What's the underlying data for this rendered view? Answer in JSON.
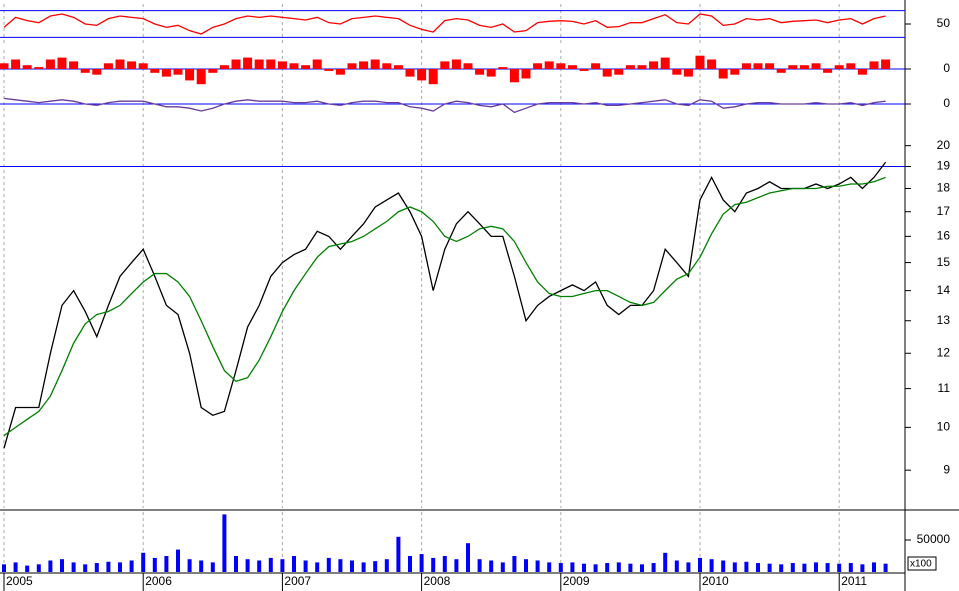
{
  "chart_data": [
    {
      "type": "line",
      "ylim": [
        20,
        80
      ],
      "yticks": [
        50
      ],
      "grid": true,
      "reference_lines": [
        30,
        70
      ],
      "reference_color": "#0000ff",
      "series": [
        {
          "color": "#ff0000",
          "values": [
            45,
            60,
            55,
            52,
            62,
            65,
            60,
            50,
            48,
            58,
            62,
            60,
            58,
            50,
            45,
            48,
            40,
            35,
            45,
            50,
            58,
            62,
            60,
            62,
            60,
            58,
            56,
            60,
            52,
            50,
            58,
            60,
            62,
            60,
            58,
            48,
            42,
            38,
            55,
            58,
            56,
            48,
            45,
            50,
            38,
            40,
            52,
            54,
            55,
            54,
            50,
            55,
            45,
            46,
            52,
            52,
            58,
            64,
            52,
            50,
            65,
            62,
            48,
            50,
            58,
            56,
            58,
            52,
            54,
            55,
            56,
            52,
            56,
            58,
            50,
            58,
            62
          ]
        }
      ]
    },
    {
      "type": "bar",
      "ylim": [
        -1,
        1
      ],
      "yticks": [
        0
      ],
      "grid": true,
      "reference_lines": [
        0
      ],
      "reference_color": "#0000ff",
      "series": [
        {
          "color": "#ff0000",
          "values": [
            0.3,
            0.5,
            0.2,
            0.1,
            0.5,
            0.6,
            0.4,
            -0.2,
            -0.3,
            0.3,
            0.5,
            0.4,
            0.3,
            -0.2,
            -0.4,
            -0.3,
            -0.6,
            -0.8,
            -0.2,
            0.2,
            0.5,
            0.6,
            0.5,
            0.5,
            0.4,
            0.3,
            0.2,
            0.5,
            -0.1,
            -0.3,
            0.3,
            0.4,
            0.5,
            0.3,
            0.2,
            -0.4,
            -0.6,
            -0.8,
            0.4,
            0.5,
            0.3,
            -0.3,
            -0.4,
            0.1,
            -0.7,
            -0.5,
            0.3,
            0.4,
            0.3,
            0.2,
            -0.1,
            0.3,
            -0.4,
            -0.3,
            0.2,
            0.2,
            0.4,
            0.6,
            -0.3,
            -0.4,
            0.7,
            0.5,
            -0.5,
            -0.3,
            0.3,
            0.3,
            0.3,
            -0.2,
            0.2,
            0.2,
            0.3,
            -0.2,
            0.2,
            0.3,
            -0.3,
            0.4,
            0.5
          ]
        }
      ]
    },
    {
      "type": "line",
      "ylim": [
        -1,
        1
      ],
      "yticks": [
        0
      ],
      "grid": true,
      "reference_lines": [
        0
      ],
      "reference_color": "#0000ff",
      "series": [
        {
          "color": "#6a3d9a",
          "values": [
            0.4,
            0.3,
            0.2,
            0.1,
            0.2,
            0.3,
            0.2,
            0.0,
            -0.1,
            0.1,
            0.2,
            0.2,
            0.2,
            0.0,
            -0.2,
            -0.2,
            -0.3,
            -0.5,
            -0.3,
            0.0,
            0.2,
            0.3,
            0.2,
            0.2,
            0.2,
            0.1,
            0.1,
            0.2,
            0.0,
            -0.1,
            0.1,
            0.2,
            0.2,
            0.1,
            0.1,
            -0.2,
            -0.3,
            -0.5,
            0.0,
            0.2,
            0.1,
            -0.1,
            -0.2,
            0.0,
            -0.6,
            -0.3,
            0.0,
            0.1,
            0.1,
            0.1,
            0.0,
            0.1,
            -0.1,
            -0.1,
            0.0,
            0.1,
            0.2,
            0.3,
            0.0,
            -0.1,
            0.3,
            0.2,
            -0.3,
            -0.2,
            0.0,
            0.1,
            0.1,
            0.0,
            0.0,
            0.0,
            0.1,
            0.0,
            0.0,
            0.1,
            -0.1,
            0.1,
            0.2
          ]
        }
      ]
    },
    {
      "type": "line",
      "log": true,
      "ylim": [
        8.2,
        21.2
      ],
      "yticks": [
        9,
        10,
        11,
        12,
        13,
        14,
        15,
        16,
        17,
        18,
        19,
        20
      ],
      "grid": true,
      "reference_lines": [
        19
      ],
      "reference_color": "#0000ff",
      "series": [
        {
          "color": "#000000",
          "values": [
            9.5,
            10.5,
            10.5,
            10.5,
            12,
            13.5,
            14,
            13.3,
            12.5,
            13.5,
            14.5,
            15,
            15.5,
            14.5,
            13.5,
            13.2,
            12,
            10.5,
            10.3,
            10.4,
            11.5,
            12.8,
            13.5,
            14.5,
            15,
            15.3,
            15.5,
            16.2,
            16,
            15.5,
            16,
            16.5,
            17.2,
            17.5,
            17.8,
            17,
            16,
            14,
            15.5,
            16.5,
            17,
            16.5,
            16,
            16,
            14.5,
            13,
            13.5,
            13.8,
            14,
            14.2,
            14,
            14.3,
            13.5,
            13.2,
            13.5,
            13.5,
            14,
            15.5,
            15,
            14.5,
            17.5,
            18.5,
            17.5,
            17,
            17.8,
            18,
            18.3,
            18,
            18,
            18,
            18.2,
            18,
            18.2,
            18.5,
            18,
            18.5,
            19.2
          ]
        },
        {
          "color": "#008000",
          "values": [
            9.8,
            10,
            10.2,
            10.4,
            10.8,
            11.5,
            12.3,
            12.9,
            13.2,
            13.3,
            13.5,
            13.9,
            14.3,
            14.6,
            14.6,
            14.3,
            13.8,
            13,
            12.2,
            11.5,
            11.2,
            11.3,
            11.8,
            12.5,
            13.3,
            14,
            14.6,
            15.2,
            15.6,
            15.7,
            15.8,
            16,
            16.3,
            16.6,
            17,
            17.2,
            17,
            16.6,
            16,
            15.8,
            16,
            16.3,
            16.4,
            16.3,
            15.8,
            15,
            14.3,
            13.9,
            13.8,
            13.8,
            13.9,
            14,
            14,
            13.8,
            13.6,
            13.5,
            13.6,
            14,
            14.4,
            14.6,
            15.2,
            16.1,
            16.9,
            17.3,
            17.4,
            17.6,
            17.8,
            17.9,
            18,
            18,
            18,
            18.1,
            18.1,
            18.2,
            18.2,
            18.3,
            18.5
          ]
        }
      ]
    },
    {
      "type": "bar",
      "ylim": [
        0,
        93750
      ],
      "yticks": [
        50000
      ],
      "grid": true,
      "y_unit_label": "x100",
      "categories": [
        "2005",
        null,
        null,
        null,
        null,
        null,
        null,
        null,
        null,
        null,
        null,
        null,
        "2006",
        null,
        null,
        null,
        null,
        null,
        null,
        null,
        null,
        null,
        null,
        null,
        "2007",
        null,
        null,
        null,
        null,
        null,
        null,
        null,
        null,
        null,
        null,
        null,
        "2008",
        null,
        null,
        null,
        null,
        null,
        null,
        null,
        null,
        null,
        null,
        null,
        "2009",
        null,
        null,
        null,
        null,
        null,
        null,
        null,
        null,
        null,
        null,
        null,
        "2010",
        null,
        null,
        null,
        null,
        null,
        null,
        null,
        null,
        null,
        null,
        null,
        "2011",
        null,
        null,
        null,
        null
      ],
      "series": [
        {
          "color": "#0000ff",
          "values": [
            12000,
            15000,
            10000,
            12000,
            18000,
            20000,
            15000,
            12000,
            14000,
            16000,
            15000,
            18000,
            30000,
            22000,
            25000,
            35000,
            20000,
            18000,
            15000,
            90000,
            25000,
            20000,
            18000,
            22000,
            20000,
            25000,
            18000,
            15000,
            22000,
            20000,
            18000,
            15000,
            17000,
            20000,
            55000,
            25000,
            28000,
            22000,
            25000,
            20000,
            45000,
            20000,
            18000,
            15000,
            25000,
            20000,
            18000,
            15000,
            14000,
            15000,
            13000,
            12000,
            14000,
            15000,
            13000,
            12000,
            14000,
            30000,
            18000,
            15000,
            22000,
            20000,
            18000,
            15000,
            16000,
            14000,
            13000,
            12000,
            14000,
            13000,
            15000,
            14000,
            13000,
            14000,
            12000,
            15000,
            13000
          ]
        }
      ]
    }
  ]
}
